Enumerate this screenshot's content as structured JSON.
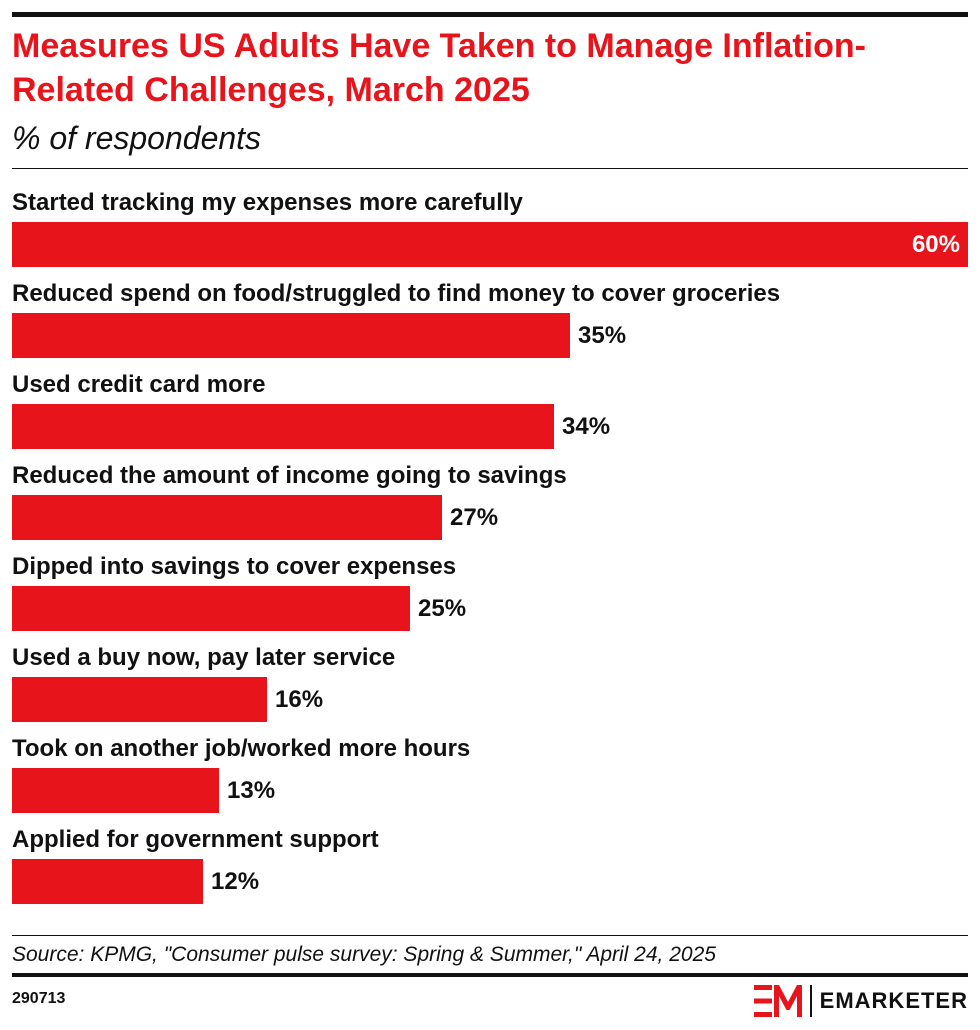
{
  "chart_data": {
    "type": "bar",
    "orientation": "horizontal",
    "title": "Measures US Adults Have Taken to Manage Inflation-Related Challenges, March 2025",
    "subtitle": "% of respondents",
    "categories": [
      "Started tracking my expenses more carefully",
      "Reduced spend on food/struggled to find money to cover groceries",
      "Used credit card more",
      "Reduced the amount of income going to savings",
      "Dipped into savings to cover expenses",
      "Used a buy now, pay later service",
      "Took on another job/worked more hours",
      "Applied for government support"
    ],
    "values": [
      60,
      35,
      34,
      27,
      25,
      16,
      13,
      12
    ],
    "value_labels": [
      "60%",
      "35%",
      "34%",
      "27%",
      "25%",
      "16%",
      "13%",
      "12%"
    ],
    "xlim": [
      0,
      60
    ],
    "grid": false,
    "bar_color": "#e8141c"
  },
  "source": "Source: KPMG, \"Consumer pulse survey: Spring & Summer,\" April 24, 2025",
  "chart_id": "290713",
  "brand": {
    "name": "EMARKETER",
    "logo_icon": "em-logo-icon"
  },
  "colors": {
    "accent": "#e8141c",
    "text": "#111111"
  }
}
